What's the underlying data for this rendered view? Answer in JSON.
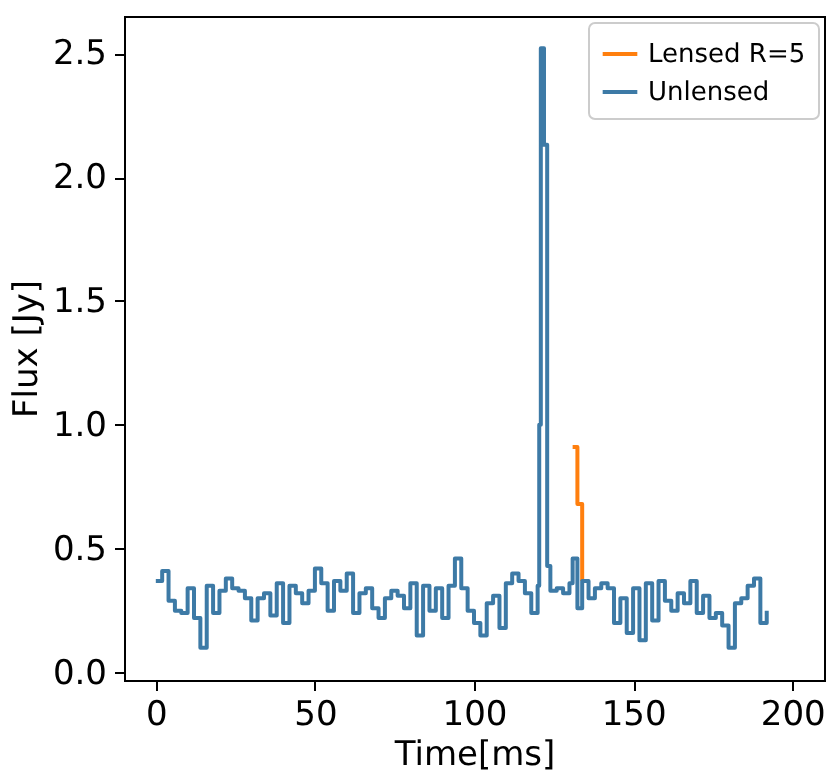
{
  "chart_data": {
    "type": "step",
    "xlabel": "Time[ms]",
    "ylabel": "Flux [Jy]",
    "x": [
      0,
      2,
      4,
      6,
      8,
      10,
      12,
      14,
      16,
      18,
      20,
      22,
      24,
      26,
      28,
      30,
      32,
      34,
      36,
      38,
      40,
      42,
      44,
      46,
      48,
      50,
      52,
      54,
      56,
      58,
      60,
      62,
      64,
      66,
      68,
      70,
      72,
      74,
      76,
      78,
      80,
      82,
      84,
      86,
      88,
      90,
      92,
      94,
      96,
      98,
      100,
      102,
      104,
      106,
      108,
      110,
      112,
      114,
      116,
      118,
      120,
      120.5,
      121,
      122,
      123,
      124,
      126,
      128,
      130,
      131,
      132.5,
      134,
      136,
      138,
      140,
      142,
      144,
      146,
      148,
      150,
      152,
      154,
      156,
      158,
      160,
      162,
      164,
      166,
      168,
      170,
      172,
      174,
      176,
      178,
      180,
      182,
      184,
      186,
      188,
      190,
      192
    ],
    "series": [
      {
        "name": "Lensed R=5",
        "color": "#ff7f0e",
        "values": [
          null,
          null,
          null,
          null,
          null,
          null,
          null,
          null,
          null,
          null,
          null,
          null,
          null,
          null,
          null,
          null,
          null,
          null,
          null,
          null,
          null,
          null,
          null,
          null,
          null,
          null,
          null,
          null,
          null,
          null,
          null,
          null,
          null,
          null,
          null,
          null,
          null,
          null,
          null,
          null,
          null,
          null,
          null,
          null,
          null,
          null,
          null,
          null,
          null,
          null,
          null,
          null,
          null,
          null,
          null,
          null,
          null,
          null,
          null,
          null,
          null,
          null,
          null,
          null,
          null,
          null,
          null,
          null,
          null,
          0.91,
          0.68,
          0.37,
          null,
          null,
          null,
          null,
          null,
          null,
          null,
          null,
          null,
          null,
          null,
          null,
          null,
          null,
          null,
          null,
          null,
          null,
          null,
          null,
          null,
          null,
          null,
          null,
          null,
          null,
          null,
          null,
          null
        ]
      },
      {
        "name": "Unlensed",
        "color": "#3d7aa6",
        "values": [
          0.37,
          0.41,
          0.29,
          0.25,
          0.24,
          0.34,
          0.22,
          0.1,
          0.35,
          0.24,
          0.33,
          0.38,
          0.34,
          0.33,
          0.3,
          0.21,
          0.3,
          0.32,
          0.23,
          0.36,
          0.2,
          0.35,
          0.32,
          0.28,
          0.33,
          0.42,
          0.36,
          0.25,
          0.37,
          0.33,
          0.4,
          0.24,
          0.32,
          0.34,
          0.26,
          0.22,
          0.3,
          0.33,
          0.31,
          0.26,
          0.36,
          0.15,
          0.35,
          0.25,
          0.34,
          0.22,
          0.35,
          0.46,
          0.34,
          0.25,
          0.2,
          0.15,
          0.28,
          0.31,
          0.18,
          0.36,
          0.4,
          0.37,
          0.32,
          0.24,
          0.35,
          1.0,
          2.52,
          2.13,
          0.43,
          0.33,
          0.34,
          0.32,
          0.36,
          0.46,
          0.26,
          0.37,
          0.3,
          0.34,
          0.36,
          0.34,
          0.2,
          0.3,
          0.16,
          0.34,
          0.13,
          0.36,
          0.21,
          0.37,
          0.29,
          0.25,
          0.32,
          0.28,
          0.37,
          0.24,
          0.31,
          0.22,
          0.24,
          0.19,
          0.1,
          0.28,
          0.3,
          0.35,
          0.38,
          0.2,
          0.25
        ]
      }
    ],
    "xlim": [
      -10,
      210
    ],
    "xticks": [
      0,
      50,
      100,
      150,
      200
    ],
    "ylim": [
      -0.03,
      2.65
    ],
    "yticks": [
      {
        "value": 0,
        "label": "0.0"
      },
      {
        "value": 0.5,
        "label": "0.5"
      },
      {
        "value": 1,
        "label": "1.0"
      },
      {
        "value": 1.5,
        "label": "1.5"
      },
      {
        "value": 2,
        "label": "2.0"
      },
      {
        "value": 2.5,
        "label": "2.5"
      }
    ],
    "legend": "top right",
    "grid": false
  }
}
